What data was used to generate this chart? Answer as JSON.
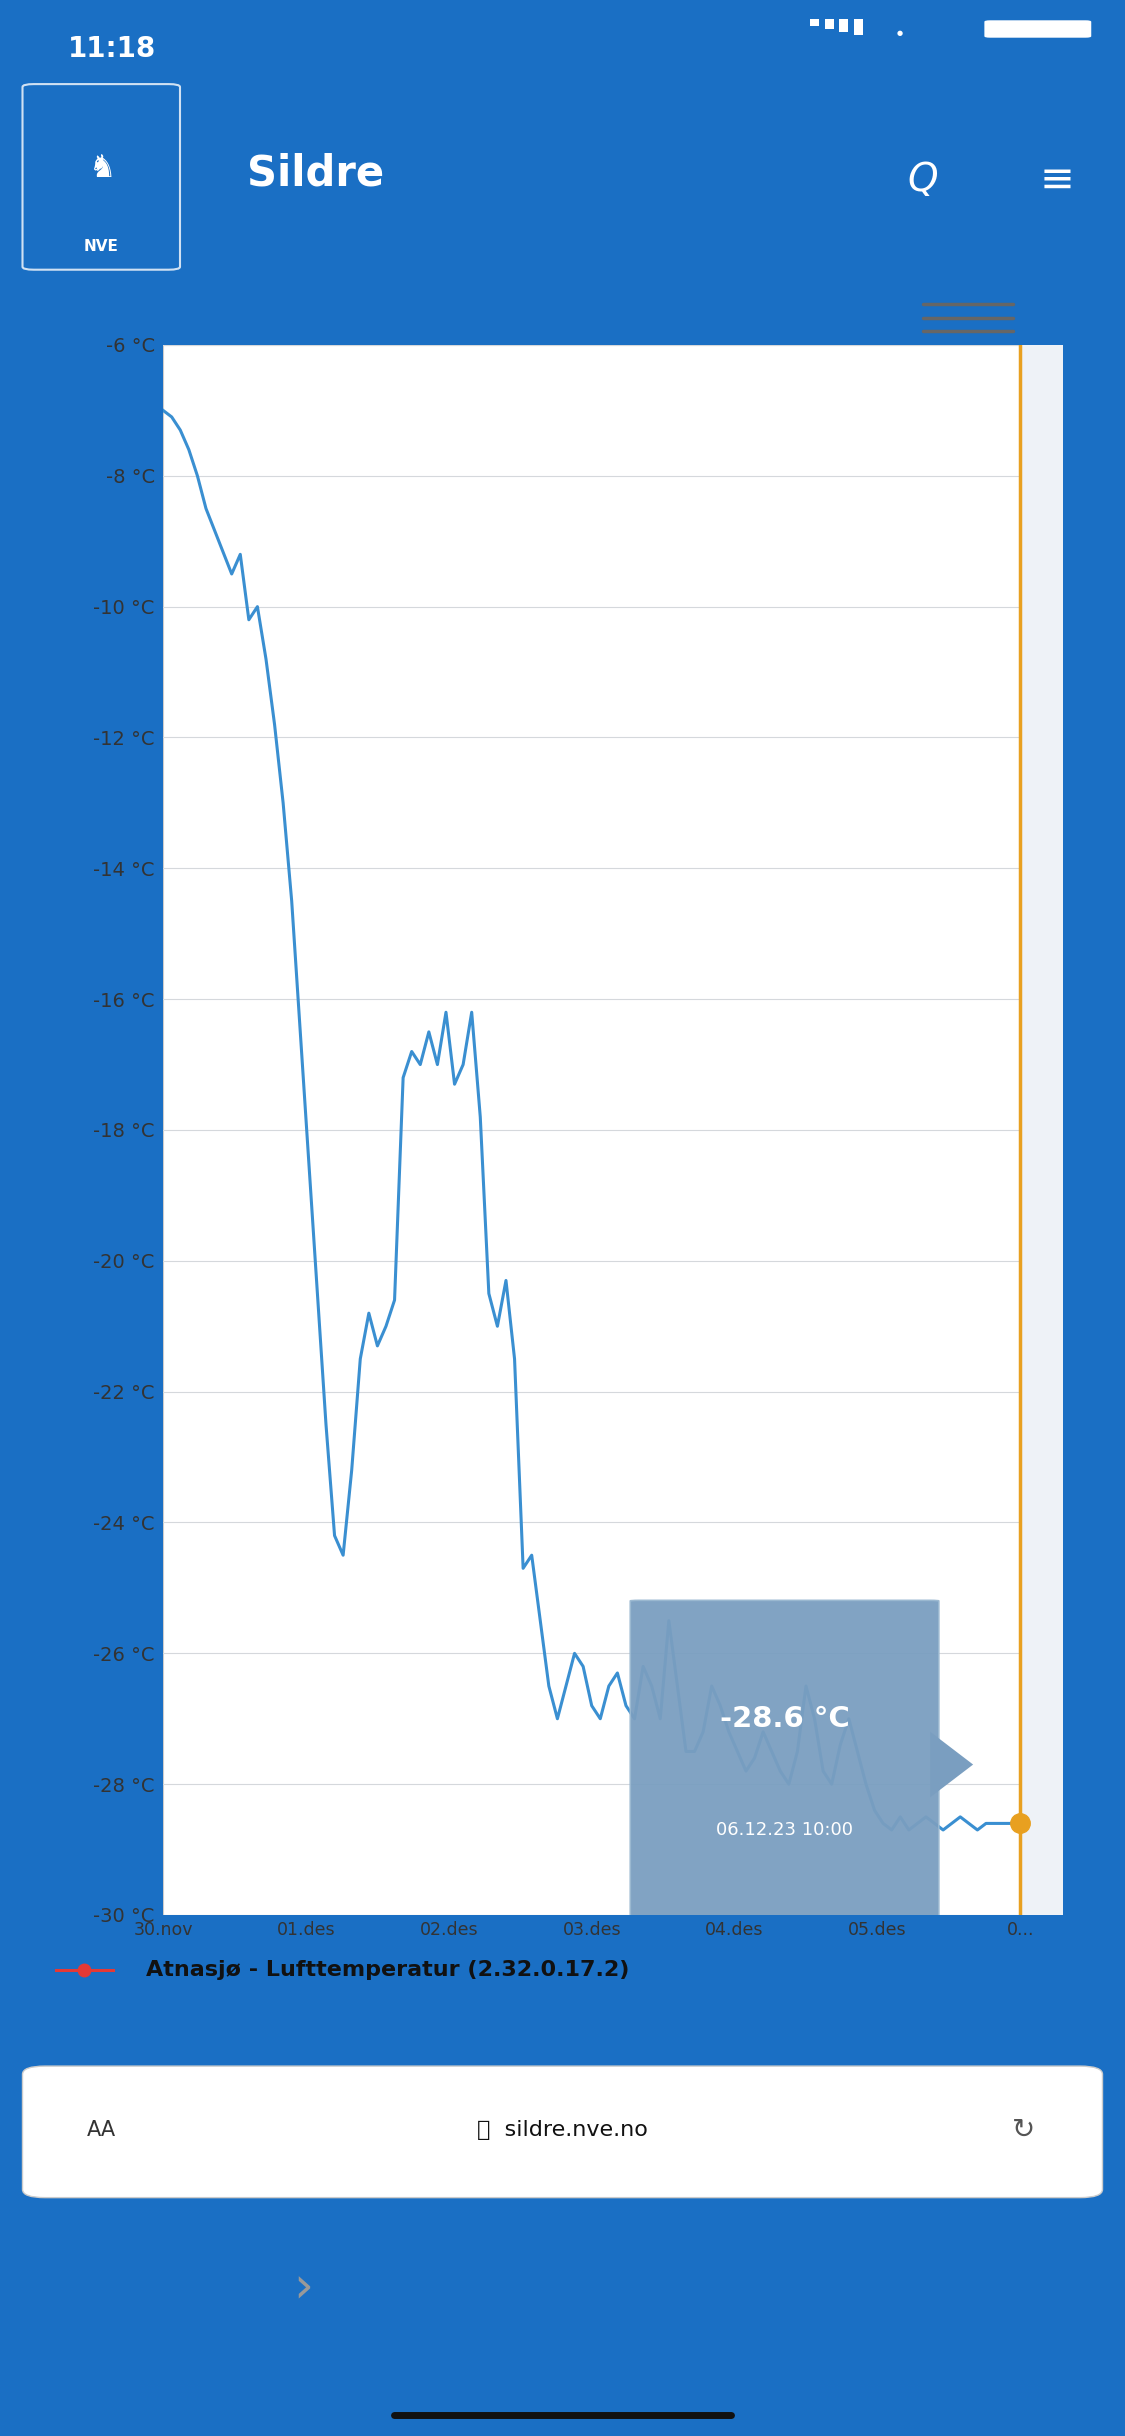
{
  "nve_header_color": "#1a6fc4",
  "line_color": "#3a8fd1",
  "orange_color": "#e8a020",
  "grid_color": "#d5d8dc",
  "chart_inner_bg": "#ffffff",
  "chart_outer_bg": "#eef2f7",
  "y_min": -30,
  "y_max": -6,
  "y_ticks": [
    -6,
    -8,
    -10,
    -12,
    -14,
    -16,
    -18,
    -20,
    -22,
    -24,
    -26,
    -28,
    -30
  ],
  "x_labels": [
    "30.nov",
    "01.des",
    "02.des",
    "03.des",
    "04.des",
    "05.des",
    "0..."
  ],
  "tooltip_temp": "-28.6 °C",
  "tooltip_date": "06.12.23 10:00",
  "tooltip_bg": "#7a9ec0",
  "legend_label": "Atnasjø - Lufttemperatur (2.32.0.17.2)",
  "legend_dot_color": "#e53935",
  "time_text": "11:18",
  "url_text": "sildre.nve.no",
  "temp_data_x": [
    0.0,
    0.01,
    0.02,
    0.03,
    0.04,
    0.05,
    0.065,
    0.08,
    0.09,
    0.1,
    0.11,
    0.12,
    0.13,
    0.14,
    0.15,
    0.16,
    0.17,
    0.18,
    0.19,
    0.2,
    0.21,
    0.22,
    0.23,
    0.24,
    0.25,
    0.26,
    0.27,
    0.28,
    0.29,
    0.3,
    0.31,
    0.32,
    0.33,
    0.34,
    0.35,
    0.36,
    0.37,
    0.38,
    0.39,
    0.4,
    0.41,
    0.42,
    0.43,
    0.44,
    0.45,
    0.46,
    0.47,
    0.48,
    0.49,
    0.5,
    0.51,
    0.52,
    0.53,
    0.54,
    0.55,
    0.56,
    0.57,
    0.58,
    0.59,
    0.6,
    0.61,
    0.62,
    0.63,
    0.64,
    0.65,
    0.66,
    0.67,
    0.68,
    0.69,
    0.7,
    0.71,
    0.72,
    0.73,
    0.74,
    0.75,
    0.76,
    0.77,
    0.78,
    0.79,
    0.8,
    0.81,
    0.82,
    0.83,
    0.84,
    0.85,
    0.86,
    0.87,
    0.88,
    0.89,
    0.9,
    0.91,
    0.92,
    0.93,
    0.94,
    0.95,
    0.96,
    0.97,
    0.98,
    0.99,
    1.0
  ],
  "temp_data_y": [
    -7.0,
    -7.1,
    -7.3,
    -7.6,
    -8.0,
    -8.5,
    -9.0,
    -9.5,
    -9.2,
    -10.2,
    -10.0,
    -10.8,
    -11.8,
    -13.0,
    -14.5,
    -16.5,
    -18.5,
    -20.5,
    -22.5,
    -24.2,
    -24.5,
    -23.2,
    -21.5,
    -20.8,
    -21.3,
    -21.0,
    -20.6,
    -17.2,
    -16.8,
    -17.0,
    -16.5,
    -17.0,
    -16.2,
    -17.3,
    -17.0,
    -16.2,
    -17.8,
    -20.5,
    -21.0,
    -20.3,
    -21.5,
    -24.7,
    -24.5,
    -25.5,
    -26.5,
    -27.0,
    -26.5,
    -26.0,
    -26.2,
    -26.8,
    -27.0,
    -26.5,
    -26.3,
    -26.8,
    -27.0,
    -26.2,
    -26.5,
    -27.0,
    -25.5,
    -26.5,
    -27.5,
    -27.5,
    -27.2,
    -26.5,
    -26.8,
    -27.2,
    -27.5,
    -27.8,
    -27.6,
    -27.2,
    -27.5,
    -27.8,
    -28.0,
    -27.5,
    -26.5,
    -27.0,
    -27.8,
    -28.0,
    -27.4,
    -27.0,
    -27.5,
    -28.0,
    -28.4,
    -28.6,
    -28.7,
    -28.5,
    -28.7,
    -28.6,
    -28.5,
    -28.6,
    -28.7,
    -28.6,
    -28.5,
    -28.6,
    -28.7,
    -28.6,
    -28.6,
    -28.6,
    -28.6,
    -28.6
  ]
}
